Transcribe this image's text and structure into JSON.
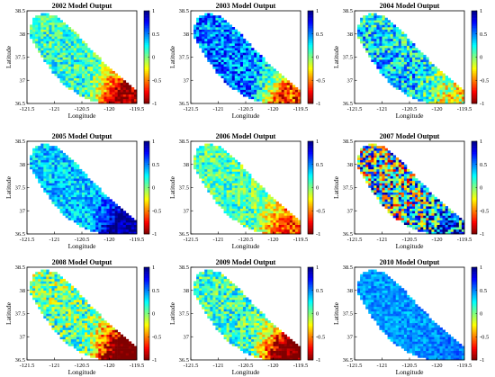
{
  "chart_data": {
    "type": "heatmap",
    "colormap": "jet",
    "color_limits": [
      -1,
      1
    ],
    "colorbar_ticks": [
      "1",
      "0.5",
      "0",
      "-0.5",
      "-1"
    ],
    "xlabel": "Longitude",
    "ylabel": "Latitude",
    "x_ticks": [
      "-121.5",
      "-121",
      "-120.5",
      "-120",
      "-119.5"
    ],
    "y_ticks": [
      "38.5",
      "38",
      "37.5",
      "37",
      "36.5"
    ],
    "xlim": [
      -121.5,
      -119.5
    ],
    "ylim": [
      36.5,
      38.5
    ],
    "panels": [
      {
        "title": "2002 Model Output",
        "mean": 0.15,
        "sw_trend": 0.1,
        "se_trend": -0.75,
        "noise": 0.3
      },
      {
        "title": "2003 Model Output",
        "mean": 0.5,
        "sw_trend": 0.1,
        "se_trend": -0.8,
        "noise": 0.35
      },
      {
        "title": "2004 Model Output",
        "mean": 0.3,
        "sw_trend": 0.3,
        "se_trend": -0.3,
        "noise": 0.4
      },
      {
        "title": "2005 Model Output",
        "mean": 0.35,
        "sw_trend": 0.0,
        "se_trend": 0.45,
        "noise": 0.25
      },
      {
        "title": "2006 Model Output",
        "mean": 0.1,
        "sw_trend": 0.1,
        "se_trend": -0.5,
        "noise": 0.3
      },
      {
        "title": "2007 Model Output",
        "mean": 0.1,
        "sw_trend": 0.3,
        "se_trend": 0.5,
        "noise": 0.9
      },
      {
        "title": "2008 Model Output",
        "mean": 0.05,
        "sw_trend": 0.2,
        "se_trend": -0.95,
        "noise": 0.4
      },
      {
        "title": "2009 Model Output",
        "mean": 0.15,
        "sw_trend": 0.1,
        "se_trend": -0.9,
        "noise": 0.35
      },
      {
        "title": "2010 Model Output",
        "mean": 0.45,
        "sw_trend": 0.0,
        "se_trend": 0.05,
        "noise": 0.15
      }
    ]
  }
}
